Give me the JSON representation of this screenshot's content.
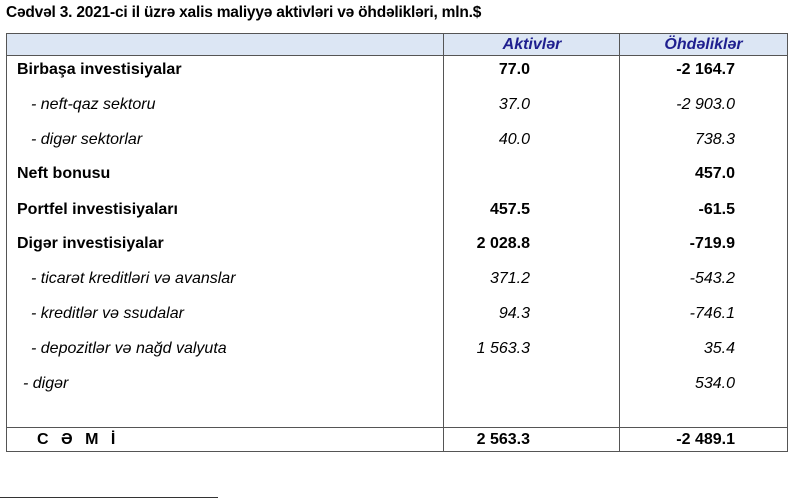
{
  "title": "Cədvəl 3. 2021-ci il üzrə xalis maliyyə aktivləri və öhdəlikləri, mln.$",
  "header": {
    "col1": "",
    "col2": "Aktivlər",
    "col3": "Öhdəliklər"
  },
  "rows": [
    {
      "label": "Birbaşa investisiyalar",
      "aktivler": "77.0",
      "ohdelikler": "-2 164.7"
    },
    {
      "label": "- neft-qaz sektoru",
      "aktivler": "37.0",
      "ohdelikler": "-2 903.0"
    },
    {
      "label": "- digər sektorlar",
      "aktivler": "40.0",
      "ohdelikler": "738.3"
    },
    {
      "label": "Neft bonusu",
      "aktivler": "",
      "ohdelikler": "457.0"
    },
    {
      "label": "Portfel investisiyaları",
      "aktivler": "457.5",
      "ohdelikler": "-61.5"
    },
    {
      "label": "Digər investisiyalar",
      "aktivler": "2 028.8",
      "ohdelikler": "-719.9"
    },
    {
      "label": "- ticarət kreditləri və avanslar",
      "aktivler": "371.2",
      "ohdelikler": "-543.2"
    },
    {
      "label": "- kreditlər və ssudalar",
      "aktivler": "94.3",
      "ohdelikler": "-746.1"
    },
    {
      "label": "- depozitlər və nağd valyuta",
      "aktivler": "1 563.3",
      "ohdelikler": "35.4"
    },
    {
      "label": "- digər",
      "aktivler": "",
      "ohdelikler": "534.0"
    }
  ],
  "total": {
    "label": "C Ə M İ",
    "aktivler": "2 563.3",
    "ohdelikler": "-2 489.1"
  },
  "colors": {
    "header_bg": "#dce6f4",
    "header_text": "#1f1f8f"
  }
}
